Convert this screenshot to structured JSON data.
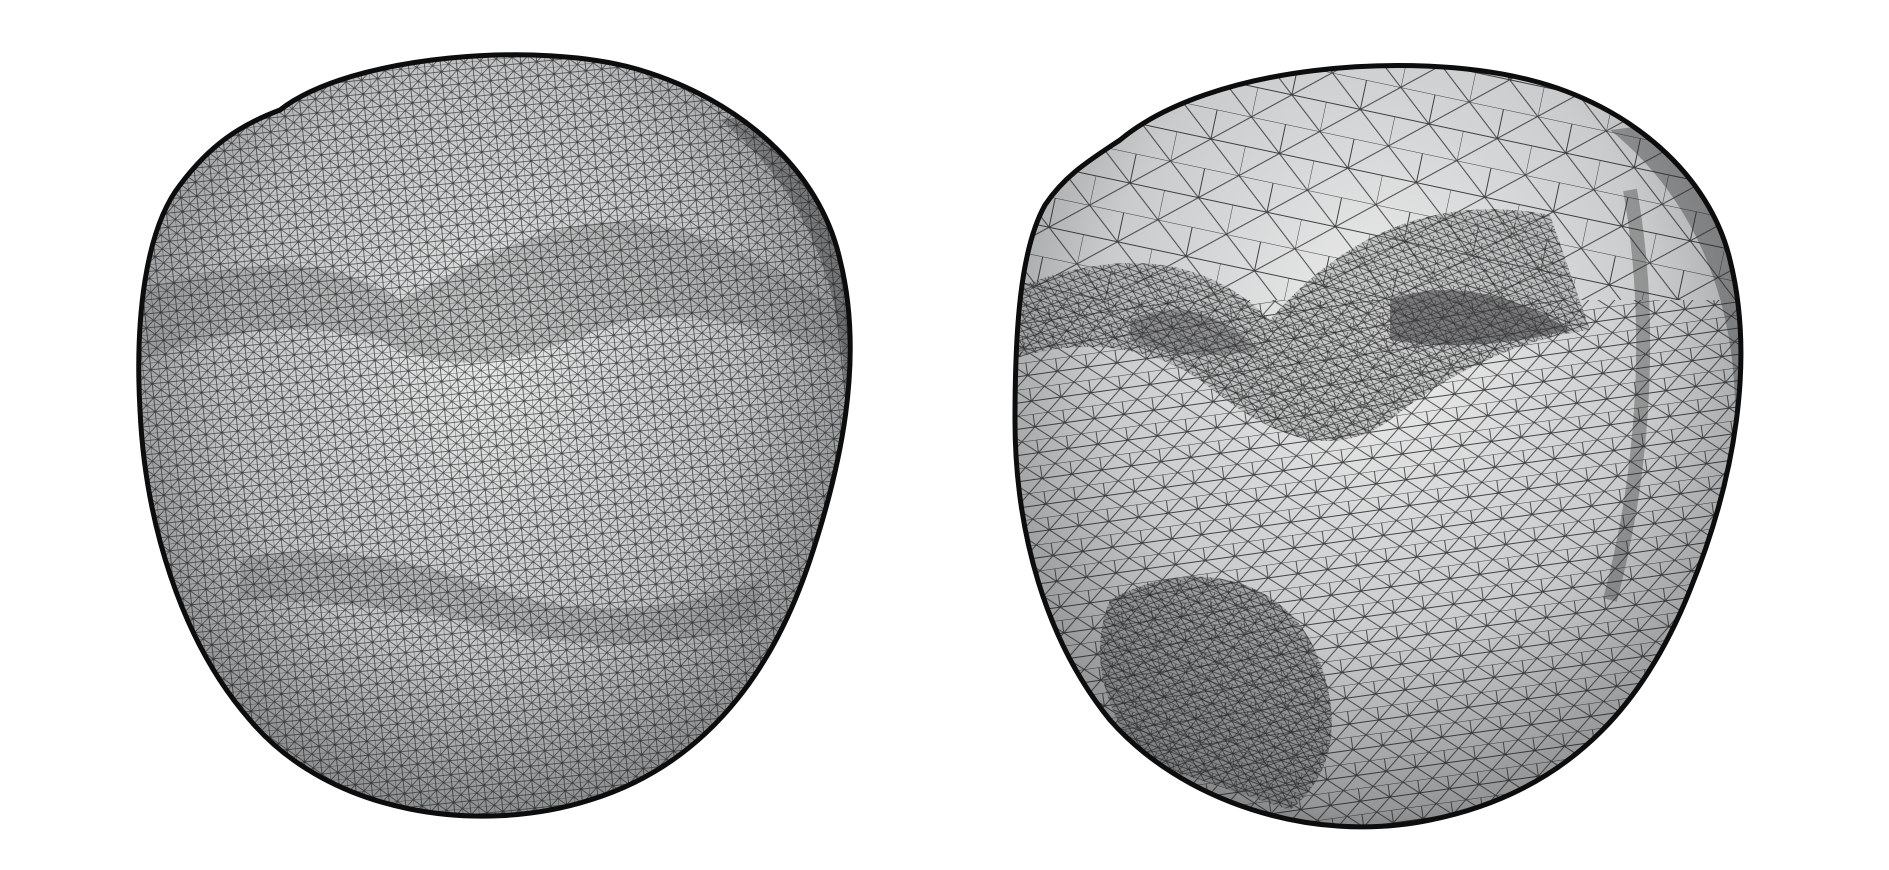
{
  "figure": {
    "background": "#ffffff",
    "surface_light": "#e9eaea",
    "surface_mid": "#b9bbbc",
    "surface_dark": "#4a4b4c",
    "wire_color": "#1a1a1a",
    "panels": [
      {
        "id": "uniform-mesh",
        "description_icon": "triangle-mesh-dense-uniform",
        "mesh_density": "uniform-fine"
      },
      {
        "id": "adaptive-mesh",
        "description_icon": "triangle-mesh-adaptive",
        "mesh_density": "adaptive"
      }
    ]
  }
}
